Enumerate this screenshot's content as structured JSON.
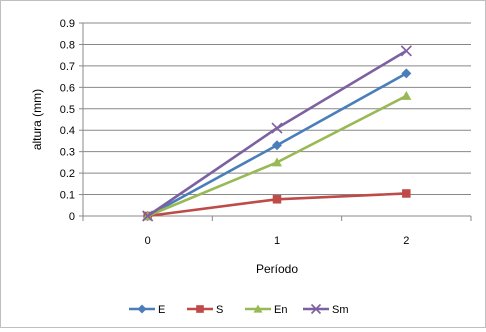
{
  "chart_data": {
    "type": "line",
    "title": "",
    "xlabel": "Período",
    "ylabel": "altura (mm)",
    "categories": [
      "0",
      "1",
      "2"
    ],
    "ylim": [
      0,
      0.9
    ],
    "yticks": [
      "0",
      "0.1",
      "0.2",
      "0.3",
      "0.4",
      "0.5",
      "0.6",
      "0.7",
      "0.8",
      "0.9"
    ],
    "grid": true,
    "legend_position": "bottom",
    "series": [
      {
        "name": "E",
        "values": [
          0,
          0.33,
          0.665
        ],
        "color": "#4a7ebb",
        "marker": "diamond"
      },
      {
        "name": "S",
        "values": [
          0,
          0.078,
          0.105
        ],
        "color": "#be4b48",
        "marker": "square"
      },
      {
        "name": "En",
        "values": [
          0,
          0.25,
          0.56
        ],
        "color": "#98b954",
        "marker": "triangle"
      },
      {
        "name": "Sm",
        "values": [
          0,
          0.41,
          0.77
        ],
        "color": "#7d60a0",
        "marker": "x"
      }
    ]
  }
}
